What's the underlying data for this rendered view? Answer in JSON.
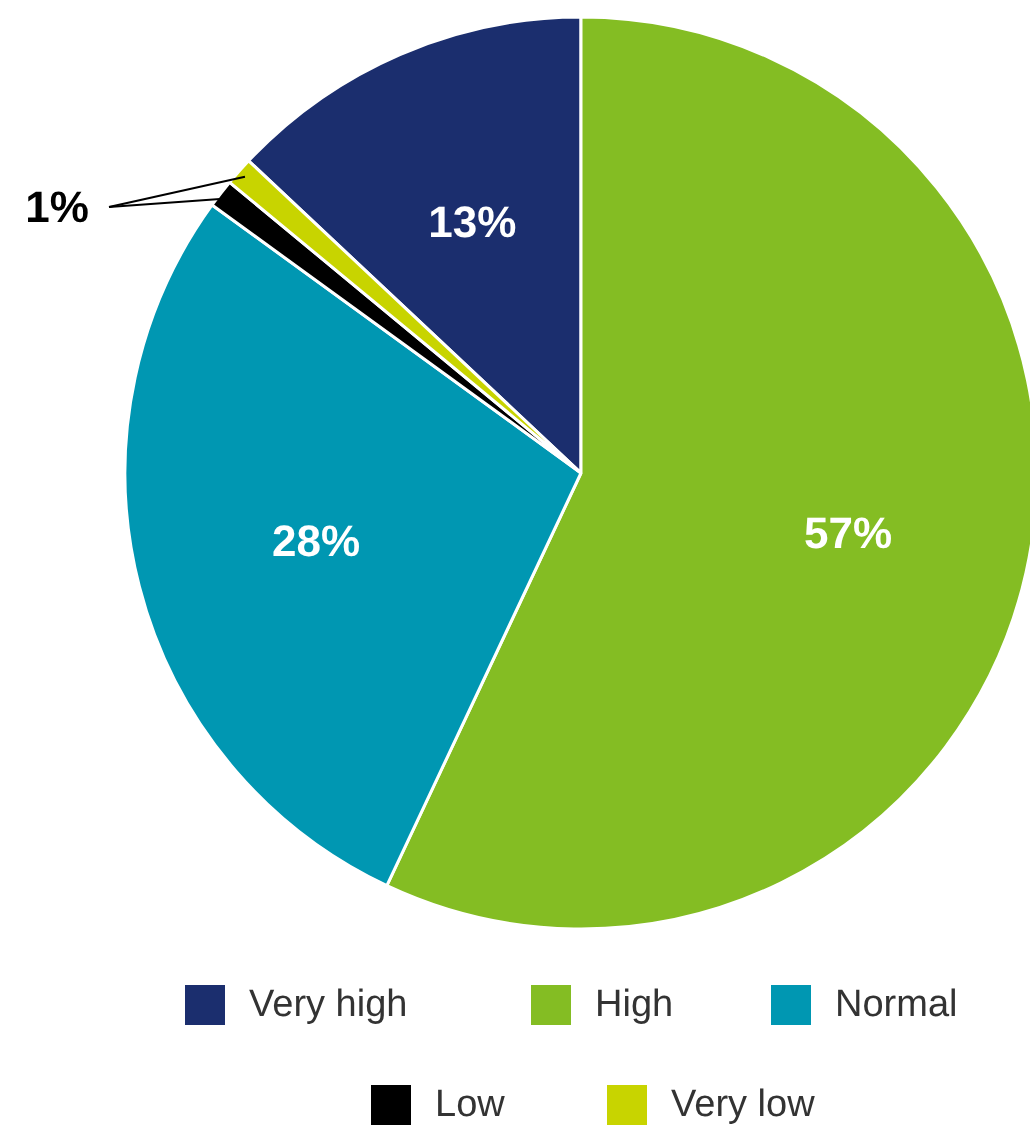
{
  "chart_data": {
    "type": "pie",
    "categories": [
      "Very high",
      "High",
      "Normal",
      "Low",
      "Very low"
    ],
    "values": [
      13,
      57,
      28,
      1,
      1
    ],
    "colors": [
      "#1b2e6e",
      "#84bd23",
      "#0097b2",
      "#000000",
      "#c8d400"
    ],
    "value_labels": [
      "13%",
      "57%",
      "28%",
      "1%",
      null
    ],
    "legend": "bottom"
  }
}
